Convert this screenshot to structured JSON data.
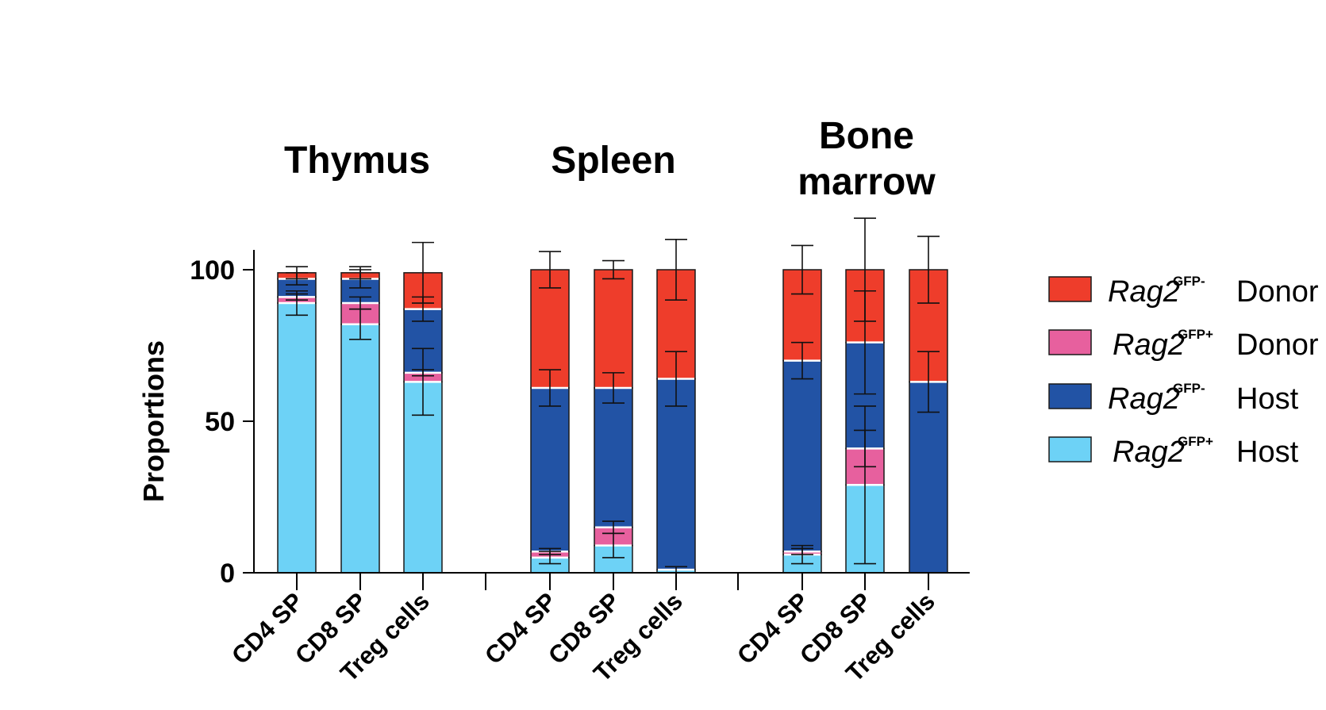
{
  "chart_data": {
    "type": "bar",
    "stacked": true,
    "ylabel": "Proportions",
    "ylim": [
      0,
      100
    ],
    "yticks": [
      0,
      50,
      100
    ],
    "groups": [
      {
        "title": "Thymus",
        "categories": [
          "CD4 SP",
          "CD8 SP",
          "Treg cells"
        ],
        "segments": {
          "Rag2GFP+ Host": {
            "values": [
              89,
              82,
              63
            ],
            "err": [
              4,
              5,
              11
            ]
          },
          "Rag2GFP- Host": {
            "values": [
              6,
              8,
              21
            ],
            "err": [
              2,
              3,
              4
            ]
          },
          "Rag2GFP+ Donor": {
            "values": [
              2,
              7,
              3
            ],
            "err": [
              1,
              2,
              1
            ]
          },
          "Rag2GFP- Donor": {
            "values": [
              2,
              2,
              12
            ],
            "err": [
              2,
              2,
              10
            ]
          }
        }
      },
      {
        "title": "Spleen",
        "categories": [
          "CD4 SP",
          "CD8 SP",
          "Treg cells"
        ],
        "segments": {
          "Rag2GFP+ Host": {
            "values": [
              5,
              9,
              1
            ],
            "err": [
              2,
              4,
              1
            ]
          },
          "Rag2GFP- Host": {
            "values": [
              54,
              46,
              63
            ],
            "err": [
              6,
              5,
              9
            ]
          },
          "Rag2GFP+ Donor": {
            "values": [
              2,
              6,
              0
            ],
            "err": [
              1,
              2,
              0
            ]
          },
          "Rag2GFP- Donor": {
            "values": [
              39,
              39,
              36
            ],
            "err": [
              6,
              3,
              10
            ]
          }
        }
      },
      {
        "title": "Bone\nmarrow",
        "categories": [
          "CD4 SP",
          "CD8 SP",
          "Treg cells"
        ],
        "segments": {
          "Rag2GFP+ Host": {
            "values": [
              6,
              29,
              0
            ],
            "err": [
              3,
              26,
              0
            ]
          },
          "Rag2GFP- Host": {
            "values": [
              63,
              35,
              63
            ],
            "err": [
              6,
              17,
              10
            ]
          },
          "Rag2GFP+ Donor": {
            "values": [
              1,
              12,
              0
            ],
            "err": [
              1,
              6,
              0
            ]
          },
          "Rag2GFP- Donor": {
            "values": [
              30,
              24,
              37
            ],
            "err": [
              8,
              17,
              11
            ]
          }
        }
      }
    ],
    "legend": {
      "placement": "right",
      "entries": [
        {
          "key": "Rag2GFP- Donor",
          "gene": "Rag2",
          "sup": "GFP-",
          "role": "Donor",
          "color": "#ee3d2b"
        },
        {
          "key": "Rag2GFP+ Donor",
          "gene": "Rag2",
          "sup": "GFP+",
          "role": "Donor",
          "color": "#e7609e"
        },
        {
          "key": "Rag2GFP- Host",
          "gene": "Rag2",
          "sup": "GFP-",
          "role": "Host",
          "color": "#2253a5"
        },
        {
          "key": "Rag2GFP+ Host",
          "gene": "Rag2",
          "sup": "GFP+",
          "role": "Host",
          "color": "#6dd2f6"
        }
      ]
    },
    "stack_order": [
      "Rag2GFP+ Host",
      "Rag2GFP+ Donor",
      "Rag2GFP- Host",
      "Rag2GFP- Donor"
    ]
  }
}
